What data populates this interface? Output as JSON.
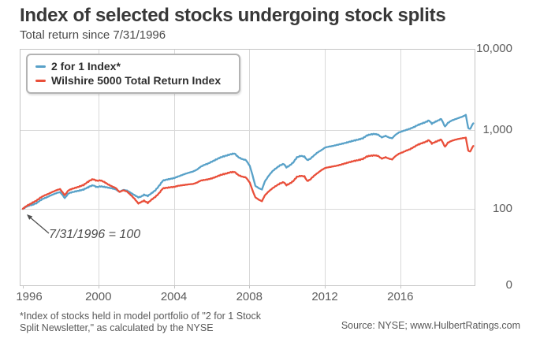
{
  "header": {
    "title": "Index of selected stocks undergoing stock splits",
    "subtitle": "Total return since 7/31/1996"
  },
  "legend": {
    "position": "top-left",
    "items": [
      {
        "label": "2 for 1 Index*",
        "color": "#58a1c8"
      },
      {
        "label": "Wilshire 5000 Total Return Index",
        "color": "#e94f3a"
      }
    ]
  },
  "annotation": {
    "text": "7/31/1996 = 100"
  },
  "footer": {
    "note_line1": "*Index of stocks held in model portfolio of \"2 for 1 Stock",
    "note_line2": "Split Newsletter,\" as calculated by the NYSE",
    "source": "Source: NYSE; www.HulbertRatings.com"
  },
  "chart_data": {
    "type": "line",
    "title": "Index of selected stocks undergoing stock splits",
    "subtitle": "Total return since 7/31/1996",
    "grid": true,
    "y_scale": "log",
    "baseline": "7/31/1996 = 100",
    "x_axis": {
      "domain": [
        1996.58,
        2020.45
      ],
      "tick_positions": [
        1996.58,
        2000.58,
        2004.58,
        2008.58,
        2012.58,
        2016.58
      ],
      "tick_labels": [
        "1996",
        "2000",
        "2004",
        "2008",
        "2012",
        "2016"
      ]
    },
    "y_axis": {
      "tick_values": [
        10000,
        1000,
        100,
        0
      ],
      "tick_labels": [
        "10,000",
        "1,000",
        "100",
        "0"
      ],
      "gridline_values": [
        1000,
        100
      ]
    },
    "series": [
      {
        "name": "2 for 1 Index*",
        "color": "#58a1c8",
        "points": [
          [
            1996.58,
            100
          ],
          [
            1996.75,
            106
          ],
          [
            1996.9,
            110
          ],
          [
            1997.1,
            113
          ],
          [
            1997.3,
            118
          ],
          [
            1997.5,
            128
          ],
          [
            1997.7,
            136
          ],
          [
            1997.85,
            140
          ],
          [
            1998.0,
            146
          ],
          [
            1998.2,
            153
          ],
          [
            1998.4,
            160
          ],
          [
            1998.55,
            163
          ],
          [
            1998.7,
            148
          ],
          [
            1998.8,
            137
          ],
          [
            1999.0,
            157
          ],
          [
            1999.2,
            163
          ],
          [
            1999.4,
            167
          ],
          [
            1999.6,
            171
          ],
          [
            1999.8,
            176
          ],
          [
            2000.0,
            186
          ],
          [
            2000.15,
            194
          ],
          [
            2000.3,
            199
          ],
          [
            2000.5,
            189
          ],
          [
            2000.7,
            193
          ],
          [
            2000.9,
            190
          ],
          [
            2001.1,
            186
          ],
          [
            2001.3,
            182
          ],
          [
            2001.5,
            177
          ],
          [
            2001.7,
            164
          ],
          [
            2001.9,
            174
          ],
          [
            2002.1,
            171
          ],
          [
            2002.3,
            160
          ],
          [
            2002.5,
            149
          ],
          [
            2002.7,
            140
          ],
          [
            2002.85,
            143
          ],
          [
            2003.0,
            151
          ],
          [
            2003.2,
            146
          ],
          [
            2003.4,
            158
          ],
          [
            2003.6,
            172
          ],
          [
            2003.8,
            196
          ],
          [
            2004.0,
            228
          ],
          [
            2004.2,
            235
          ],
          [
            2004.4,
            240
          ],
          [
            2004.6,
            246
          ],
          [
            2004.8,
            257
          ],
          [
            2005.0,
            268
          ],
          [
            2005.2,
            279
          ],
          [
            2005.4,
            289
          ],
          [
            2005.6,
            298
          ],
          [
            2005.8,
            314
          ],
          [
            2006.0,
            342
          ],
          [
            2006.2,
            362
          ],
          [
            2006.4,
            376
          ],
          [
            2006.6,
            398
          ],
          [
            2006.8,
            420
          ],
          [
            2007.0,
            444
          ],
          [
            2007.2,
            462
          ],
          [
            2007.4,
            477
          ],
          [
            2007.6,
            494
          ],
          [
            2007.8,
            504
          ],
          [
            2008.0,
            452
          ],
          [
            2008.2,
            428
          ],
          [
            2008.4,
            416
          ],
          [
            2008.6,
            352
          ],
          [
            2008.75,
            268
          ],
          [
            2008.9,
            196
          ],
          [
            2009.1,
            182
          ],
          [
            2009.25,
            176
          ],
          [
            2009.4,
            222
          ],
          [
            2009.6,
            262
          ],
          [
            2009.8,
            300
          ],
          [
            2010.0,
            328
          ],
          [
            2010.2,
            356
          ],
          [
            2010.4,
            372
          ],
          [
            2010.55,
            336
          ],
          [
            2010.7,
            352
          ],
          [
            2010.9,
            386
          ],
          [
            2011.1,
            450
          ],
          [
            2011.3,
            470
          ],
          [
            2011.5,
            460
          ],
          [
            2011.65,
            415
          ],
          [
            2011.8,
            430
          ],
          [
            2012.0,
            475
          ],
          [
            2012.2,
            520
          ],
          [
            2012.4,
            556
          ],
          [
            2012.6,
            600
          ],
          [
            2012.8,
            616
          ],
          [
            2013.0,
            628
          ],
          [
            2013.2,
            646
          ],
          [
            2013.4,
            662
          ],
          [
            2013.6,
            680
          ],
          [
            2013.8,
            700
          ],
          [
            2014.0,
            722
          ],
          [
            2014.2,
            742
          ],
          [
            2014.4,
            762
          ],
          [
            2014.6,
            788
          ],
          [
            2014.8,
            852
          ],
          [
            2015.0,
            880
          ],
          [
            2015.2,
            892
          ],
          [
            2015.4,
            876
          ],
          [
            2015.6,
            806
          ],
          [
            2015.8,
            844
          ],
          [
            2016.0,
            800
          ],
          [
            2016.15,
            786
          ],
          [
            2016.3,
            860
          ],
          [
            2016.5,
            930
          ],
          [
            2016.7,
            968
          ],
          [
            2016.9,
            1005
          ],
          [
            2017.1,
            1040
          ],
          [
            2017.3,
            1090
          ],
          [
            2017.5,
            1155
          ],
          [
            2017.7,
            1205
          ],
          [
            2017.9,
            1255
          ],
          [
            2018.1,
            1325
          ],
          [
            2018.25,
            1205
          ],
          [
            2018.4,
            1260
          ],
          [
            2018.6,
            1330
          ],
          [
            2018.75,
            1385
          ],
          [
            2018.95,
            1105
          ],
          [
            2019.1,
            1230
          ],
          [
            2019.3,
            1320
          ],
          [
            2019.5,
            1375
          ],
          [
            2019.7,
            1430
          ],
          [
            2019.9,
            1490
          ],
          [
            2020.05,
            1555
          ],
          [
            2020.18,
            1060
          ],
          [
            2020.28,
            1030
          ],
          [
            2020.38,
            1150
          ],
          [
            2020.45,
            1215
          ]
        ]
      },
      {
        "name": "Wilshire 5000 Total Return Index",
        "color": "#e94f3a",
        "points": [
          [
            1996.58,
            100
          ],
          [
            1996.75,
            108
          ],
          [
            1996.9,
            113
          ],
          [
            1997.1,
            120
          ],
          [
            1997.3,
            127
          ],
          [
            1997.5,
            138
          ],
          [
            1997.7,
            147
          ],
          [
            1997.85,
            152
          ],
          [
            1998.0,
            158
          ],
          [
            1998.2,
            166
          ],
          [
            1998.4,
            174
          ],
          [
            1998.55,
            178
          ],
          [
            1998.7,
            160
          ],
          [
            1998.8,
            149
          ],
          [
            1999.0,
            172
          ],
          [
            1999.2,
            180
          ],
          [
            1999.4,
            186
          ],
          [
            1999.6,
            193
          ],
          [
            1999.8,
            201
          ],
          [
            2000.0,
            218
          ],
          [
            2000.15,
            230
          ],
          [
            2000.3,
            238
          ],
          [
            2000.5,
            227
          ],
          [
            2000.7,
            230
          ],
          [
            2000.9,
            219
          ],
          [
            2001.1,
            204
          ],
          [
            2001.3,
            193
          ],
          [
            2001.5,
            184
          ],
          [
            2001.7,
            164
          ],
          [
            2001.9,
            172
          ],
          [
            2002.1,
            166
          ],
          [
            2002.3,
            150
          ],
          [
            2002.5,
            134
          ],
          [
            2002.7,
            117
          ],
          [
            2002.85,
            122
          ],
          [
            2003.0,
            127
          ],
          [
            2003.2,
            119
          ],
          [
            2003.4,
            131
          ],
          [
            2003.6,
            142
          ],
          [
            2003.8,
            158
          ],
          [
            2004.0,
            182
          ],
          [
            2004.2,
            185
          ],
          [
            2004.4,
            188
          ],
          [
            2004.6,
            190
          ],
          [
            2004.8,
            196
          ],
          [
            2005.0,
            199
          ],
          [
            2005.2,
            202
          ],
          [
            2005.4,
            205
          ],
          [
            2005.6,
            207
          ],
          [
            2005.8,
            215
          ],
          [
            2006.0,
            228
          ],
          [
            2006.2,
            233
          ],
          [
            2006.4,
            237
          ],
          [
            2006.6,
            244
          ],
          [
            2006.8,
            254
          ],
          [
            2007.0,
            266
          ],
          [
            2007.2,
            275
          ],
          [
            2007.4,
            283
          ],
          [
            2007.6,
            292
          ],
          [
            2007.8,
            294
          ],
          [
            2008.0,
            268
          ],
          [
            2008.2,
            256
          ],
          [
            2008.4,
            250
          ],
          [
            2008.6,
            216
          ],
          [
            2008.75,
            172
          ],
          [
            2008.9,
            140
          ],
          [
            2009.1,
            130
          ],
          [
            2009.25,
            125
          ],
          [
            2009.4,
            148
          ],
          [
            2009.6,
            166
          ],
          [
            2009.8,
            182
          ],
          [
            2010.0,
            196
          ],
          [
            2010.2,
            210
          ],
          [
            2010.4,
            218
          ],
          [
            2010.55,
            200
          ],
          [
            2010.7,
            208
          ],
          [
            2010.9,
            224
          ],
          [
            2011.1,
            255
          ],
          [
            2011.3,
            262
          ],
          [
            2011.5,
            258
          ],
          [
            2011.65,
            225
          ],
          [
            2011.8,
            235
          ],
          [
            2012.0,
            262
          ],
          [
            2012.2,
            285
          ],
          [
            2012.4,
            310
          ],
          [
            2012.6,
            330
          ],
          [
            2012.8,
            338
          ],
          [
            2013.0,
            345
          ],
          [
            2013.2,
            352
          ],
          [
            2013.4,
            362
          ],
          [
            2013.6,
            374
          ],
          [
            2013.8,
            386
          ],
          [
            2014.0,
            398
          ],
          [
            2014.2,
            408
          ],
          [
            2014.4,
            418
          ],
          [
            2014.6,
            430
          ],
          [
            2014.8,
            462
          ],
          [
            2015.0,
            472
          ],
          [
            2015.2,
            478
          ],
          [
            2015.4,
            470
          ],
          [
            2015.6,
            434
          ],
          [
            2015.8,
            452
          ],
          [
            2016.0,
            432
          ],
          [
            2016.15,
            424
          ],
          [
            2016.3,
            462
          ],
          [
            2016.5,
            500
          ],
          [
            2016.7,
            522
          ],
          [
            2016.9,
            548
          ],
          [
            2017.1,
            572
          ],
          [
            2017.3,
            608
          ],
          [
            2017.5,
            650
          ],
          [
            2017.7,
            678
          ],
          [
            2017.9,
            705
          ],
          [
            2018.1,
            745
          ],
          [
            2018.25,
            675
          ],
          [
            2018.4,
            700
          ],
          [
            2018.6,
            735
          ],
          [
            2018.75,
            760
          ],
          [
            2018.95,
            612
          ],
          [
            2019.1,
            690
          ],
          [
            2019.3,
            730
          ],
          [
            2019.5,
            755
          ],
          [
            2019.7,
            775
          ],
          [
            2019.9,
            790
          ],
          [
            2020.05,
            800
          ],
          [
            2020.18,
            548
          ],
          [
            2020.28,
            532
          ],
          [
            2020.38,
            592
          ],
          [
            2020.45,
            628
          ]
        ]
      }
    ]
  }
}
